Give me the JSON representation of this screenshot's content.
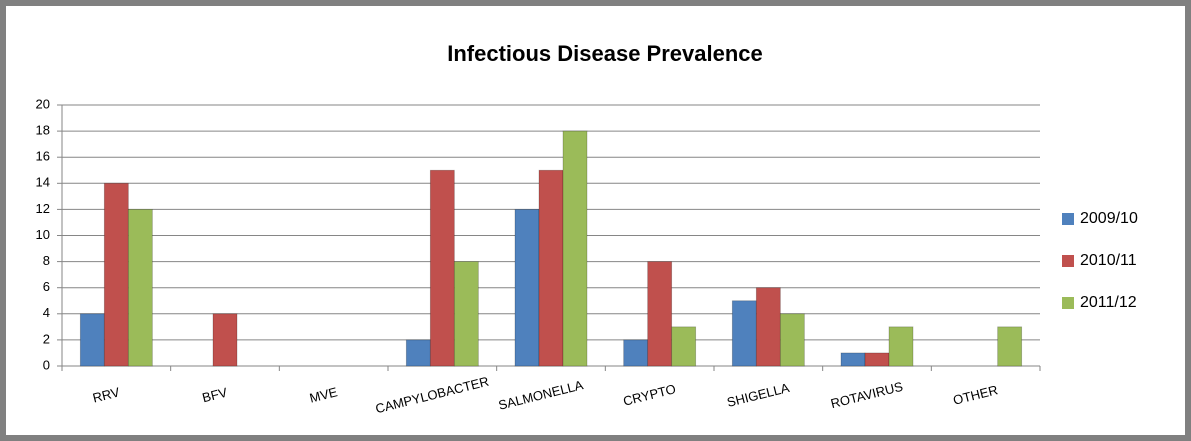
{
  "chart_data": {
    "type": "bar",
    "title": "Infectious Disease Prevalence",
    "categories": [
      "RRV",
      "BFV",
      "MVE",
      "CAMPYLOBACTER",
      "SALMONELLA",
      "CRYPTO",
      "SHIGELLA",
      "ROTAVIRUS",
      "OTHER"
    ],
    "series": [
      {
        "name": "2009/10",
        "color": "#4f81bd",
        "values": [
          4,
          0,
          0,
          2,
          12,
          2,
          5,
          1,
          0
        ]
      },
      {
        "name": "2010/11",
        "color": "#c0504d",
        "values": [
          14,
          4,
          0,
          15,
          15,
          8,
          6,
          1,
          0
        ]
      },
      {
        "name": "2011/12",
        "color": "#9bbb59",
        "values": [
          12,
          0,
          0,
          8,
          18,
          3,
          4,
          3,
          3
        ]
      }
    ],
    "ylim": [
      0,
      20
    ],
    "yticks": [
      0,
      2,
      4,
      6,
      8,
      10,
      12,
      14,
      16,
      18,
      20
    ],
    "grid": true,
    "legend": "right"
  }
}
